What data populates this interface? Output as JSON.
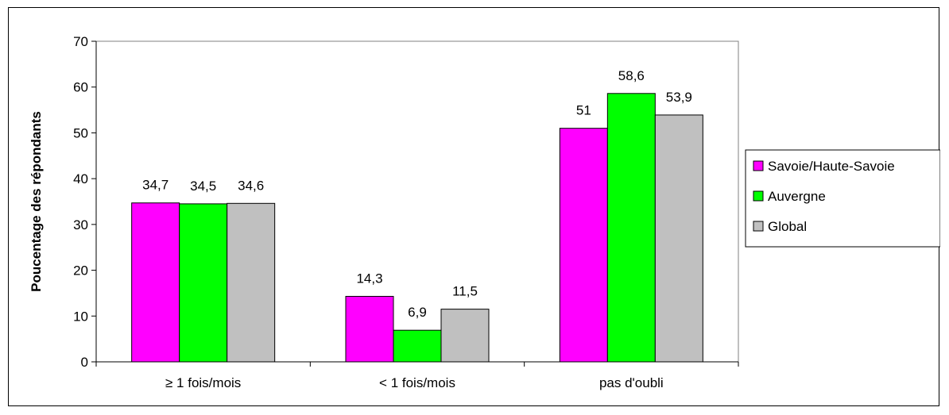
{
  "chart_data": {
    "type": "bar",
    "title": "",
    "xlabel": "",
    "ylabel": "Poucentage des répondants",
    "ylim": [
      0,
      70
    ],
    "yticks": [
      "0",
      "10",
      "20",
      "30",
      "40",
      "50",
      "60",
      "70"
    ],
    "categories": [
      "≥ 1 fois/mois",
      "< 1 fois/mois",
      "pas d'oubli"
    ],
    "series": [
      {
        "name": "Savoie/Haute-Savoie",
        "color": "#ff00ff",
        "values": [
          34.7,
          14.3,
          51
        ],
        "labels": [
          "34,7",
          "14,3",
          "51"
        ]
      },
      {
        "name": "Auvergne",
        "color": "#00ff00",
        "values": [
          34.5,
          6.9,
          58.6
        ],
        "labels": [
          "34,5",
          "6,9",
          "58,6"
        ]
      },
      {
        "name": "Global",
        "color": "#c0c0c0",
        "values": [
          34.6,
          11.5,
          53.9
        ],
        "labels": [
          "34,6",
          "11,5",
          "53,9"
        ]
      }
    ],
    "grid": false,
    "legend_position": "right",
    "plot_border": "#808080"
  }
}
